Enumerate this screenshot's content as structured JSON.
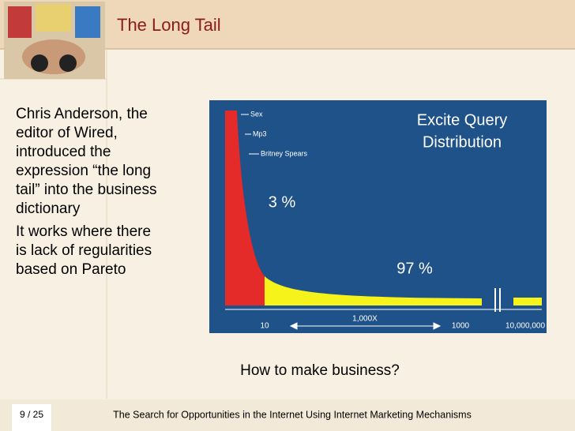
{
  "header": {
    "title": "The Long Tail"
  },
  "body": {
    "paragraphs": [
      [
        "Chris Anderson, the",
        "editor of Wired,",
        "introduced the",
        "expression “the long",
        "tail” into the business",
        "dictionary"
      ],
      [
        "It works where there",
        "is lack of regularities",
        "based on Pareto"
      ]
    ],
    "question": "How to make business?"
  },
  "figure": {
    "title": [
      "Excite Query",
      "Distribution"
    ],
    "labels": [
      "Sex",
      "Mp3",
      "Britney Spears"
    ],
    "head_share": "3 %",
    "tail_share": "97 %",
    "axis": [
      "10",
      "1,000X",
      "1000",
      "10,000,000"
    ]
  },
  "footer": {
    "page": "9 / 25",
    "text": "The Search for Opportunities in the Internet Using Internet Marketing Mechanisms"
  }
}
